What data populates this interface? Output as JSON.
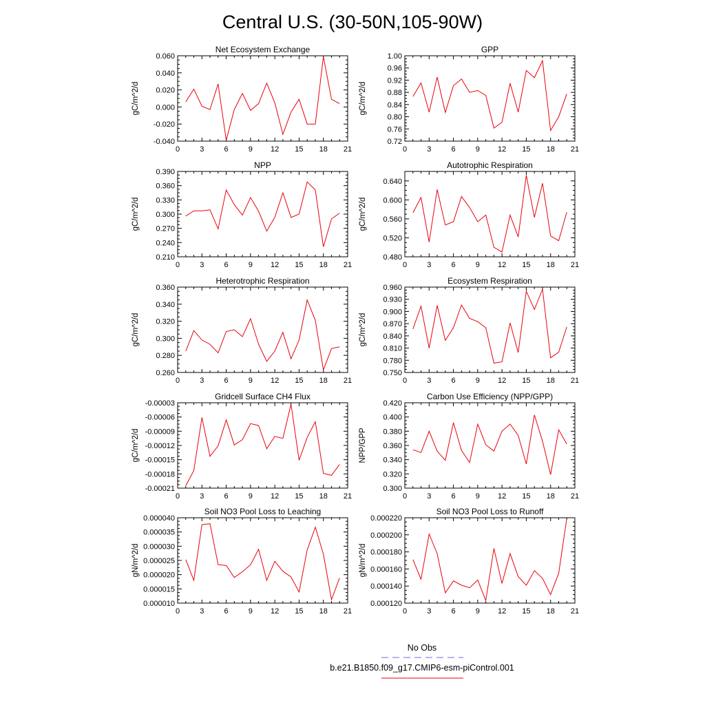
{
  "figure": {
    "title": "Central U.S. (30-50N,105-90W)",
    "series_color": "#e8000b",
    "legend": [
      {
        "name": "No Obs",
        "color": "#6a6ae6",
        "dash": "dashed"
      },
      {
        "name": "b.e21.B1850.f09_g17.CMIP6-esm-piControl.001",
        "color": "#e8000b",
        "dash": "solid"
      }
    ]
  },
  "chart_data": [
    {
      "type": "line",
      "title": "Net Ecosystem Exchange",
      "ylabel": "gC/m^2/d",
      "xlim": [
        0,
        21
      ],
      "xticks": [
        0,
        3,
        6,
        9,
        12,
        15,
        18,
        21
      ],
      "xtick_labels": [
        "0",
        "3",
        "6",
        "9",
        "12",
        "15",
        "18",
        "21"
      ],
      "ylim": [
        -0.04,
        0.06
      ],
      "yticks": [
        -0.04,
        -0.02,
        0,
        0.02,
        0.04,
        0.06
      ],
      "ytick_labels": [
        "-0.040",
        "-0.020",
        "0.000",
        "0.020",
        "0.040",
        "0.060"
      ],
      "x": [
        1,
        2,
        3,
        4,
        5,
        6,
        7,
        8,
        9,
        10,
        11,
        12,
        13,
        14,
        15,
        16,
        17,
        18,
        19,
        20
      ],
      "y": [
        0.006,
        0.021,
        0.001,
        -0.003,
        0.027,
        -0.039,
        -0.003,
        0.016,
        -0.004,
        0.004,
        0.028,
        0.005,
        -0.032,
        -0.006,
        0.009,
        -0.02,
        -0.02,
        0.059,
        0.009,
        0.004
      ]
    },
    {
      "type": "line",
      "title": "GPP",
      "ylabel": "gC/m^2/d",
      "xlim": [
        0,
        21
      ],
      "xticks": [
        0,
        3,
        6,
        9,
        12,
        15,
        18,
        21
      ],
      "xtick_labels": [
        "0",
        "3",
        "6",
        "9",
        "12",
        "15",
        "18",
        "21"
      ],
      "ylim": [
        0.72,
        1.0
      ],
      "yticks": [
        0.72,
        0.76,
        0.8,
        0.84,
        0.88,
        0.92,
        0.96,
        1.0
      ],
      "ytick_labels": [
        "0.72",
        "0.76",
        "0.80",
        "0.84",
        "0.88",
        "0.92",
        "0.96",
        "1.00"
      ],
      "x": [
        1,
        2,
        3,
        4,
        5,
        6,
        7,
        8,
        9,
        10,
        11,
        12,
        13,
        14,
        15,
        16,
        17,
        18,
        19,
        20
      ],
      "y": [
        0.866,
        0.911,
        0.815,
        0.93,
        0.814,
        0.902,
        0.924,
        0.88,
        0.886,
        0.87,
        0.763,
        0.782,
        0.91,
        0.815,
        0.952,
        0.928,
        0.984,
        0.755,
        0.8,
        0.875
      ]
    },
    {
      "type": "line",
      "title": "NPP",
      "ylabel": "gC/m^2/d",
      "xlim": [
        0,
        21
      ],
      "xticks": [
        0,
        3,
        6,
        9,
        12,
        15,
        18,
        21
      ],
      "xtick_labels": [
        "0",
        "3",
        "6",
        "9",
        "12",
        "15",
        "18",
        "21"
      ],
      "ylim": [
        0.21,
        0.39
      ],
      "yticks": [
        0.21,
        0.24,
        0.27,
        0.3,
        0.33,
        0.36,
        0.39
      ],
      "ytick_labels": [
        "0.210",
        "0.240",
        "0.270",
        "0.300",
        "0.330",
        "0.360",
        "0.390"
      ],
      "x": [
        1,
        2,
        3,
        4,
        5,
        6,
        7,
        8,
        9,
        10,
        11,
        12,
        13,
        14,
        15,
        16,
        17,
        18,
        19,
        20
      ],
      "y": [
        0.296,
        0.307,
        0.307,
        0.309,
        0.269,
        0.351,
        0.32,
        0.298,
        0.335,
        0.306,
        0.264,
        0.293,
        0.345,
        0.293,
        0.3,
        0.368,
        0.351,
        0.231,
        0.29,
        0.302
      ]
    },
    {
      "type": "line",
      "title": "Autotrophic Respiration",
      "ylabel": "gC/m^2/d",
      "xlim": [
        0,
        21
      ],
      "xticks": [
        0,
        3,
        6,
        9,
        12,
        15,
        18,
        21
      ],
      "xtick_labels": [
        "0",
        "3",
        "6",
        "9",
        "12",
        "15",
        "18",
        "21"
      ],
      "ylim": [
        0.48,
        0.66
      ],
      "yticks": [
        0.48,
        0.52,
        0.56,
        0.6,
        0.64
      ],
      "ytick_labels": [
        "0.480",
        "0.520",
        "0.560",
        "0.600",
        "0.640"
      ],
      "x": [
        1,
        2,
        3,
        4,
        5,
        6,
        7,
        8,
        9,
        10,
        11,
        12,
        13,
        14,
        15,
        16,
        17,
        18,
        19,
        20
      ],
      "y": [
        0.573,
        0.605,
        0.511,
        0.622,
        0.547,
        0.554,
        0.607,
        0.584,
        0.554,
        0.568,
        0.5,
        0.49,
        0.568,
        0.522,
        0.652,
        0.563,
        0.635,
        0.524,
        0.514,
        0.574
      ]
    },
    {
      "type": "line",
      "title": "Heterotrophic Respiration",
      "ylabel": "gC/m^2/d",
      "xlim": [
        0,
        21
      ],
      "xticks": [
        0,
        3,
        6,
        9,
        12,
        15,
        18,
        21
      ],
      "xtick_labels": [
        "0",
        "3",
        "6",
        "9",
        "12",
        "15",
        "18",
        "21"
      ],
      "ylim": [
        0.26,
        0.36
      ],
      "yticks": [
        0.26,
        0.28,
        0.3,
        0.32,
        0.34,
        0.36
      ],
      "ytick_labels": [
        "0.260",
        "0.280",
        "0.300",
        "0.320",
        "0.340",
        "0.360"
      ],
      "x": [
        1,
        2,
        3,
        4,
        5,
        6,
        7,
        8,
        9,
        10,
        11,
        12,
        13,
        14,
        15,
        16,
        17,
        18,
        19,
        20
      ],
      "y": [
        0.285,
        0.309,
        0.298,
        0.293,
        0.283,
        0.308,
        0.31,
        0.302,
        0.323,
        0.293,
        0.273,
        0.285,
        0.307,
        0.276,
        0.298,
        0.345,
        0.321,
        0.263,
        0.288,
        0.29
      ]
    },
    {
      "type": "line",
      "title": "Ecosystem Respiration",
      "ylabel": "gC/m^2/d",
      "xlim": [
        0,
        21
      ],
      "xticks": [
        0,
        3,
        6,
        9,
        12,
        15,
        18,
        21
      ],
      "xtick_labels": [
        "0",
        "3",
        "6",
        "9",
        "12",
        "15",
        "18",
        "21"
      ],
      "ylim": [
        0.75,
        0.96
      ],
      "yticks": [
        0.75,
        0.78,
        0.81,
        0.84,
        0.87,
        0.9,
        0.93,
        0.96
      ],
      "ytick_labels": [
        "0.750",
        "0.780",
        "0.810",
        "0.840",
        "0.870",
        "0.900",
        "0.930",
        "0.960"
      ],
      "x": [
        1,
        2,
        3,
        4,
        5,
        6,
        7,
        8,
        9,
        10,
        11,
        12,
        13,
        14,
        15,
        16,
        17,
        18,
        19,
        20
      ],
      "y": [
        0.857,
        0.913,
        0.81,
        0.915,
        0.829,
        0.86,
        0.916,
        0.883,
        0.875,
        0.86,
        0.773,
        0.776,
        0.872,
        0.799,
        0.95,
        0.905,
        0.955,
        0.786,
        0.8,
        0.862
      ]
    },
    {
      "type": "line",
      "title": "Gridcell Surface CH4 Flux",
      "ylabel": "gC/m^2/d",
      "xlim": [
        0,
        21
      ],
      "xticks": [
        0,
        3,
        6,
        9,
        12,
        15,
        18,
        21
      ],
      "xtick_labels": [
        "0",
        "3",
        "6",
        "9",
        "12",
        "15",
        "18",
        "21"
      ],
      "ylim": [
        -0.00021,
        -3e-05
      ],
      "yticks": [
        -0.00021,
        -0.00018,
        -0.00015,
        -0.00012,
        -9e-05,
        -6e-05,
        -3e-05
      ],
      "ytick_labels": [
        "-0.00021",
        "-0.00018",
        "-0.00015",
        "-0.00012",
        "-0.00009",
        "-0.00006",
        "-0.00003"
      ],
      "x": [
        1,
        2,
        3,
        4,
        5,
        6,
        7,
        8,
        9,
        10,
        11,
        12,
        13,
        14,
        15,
        16,
        17,
        18,
        19,
        20
      ],
      "y": [
        -0.000205,
        -0.000173,
        -6.1e-05,
        -0.000143,
        -0.000121,
        -6.6e-05,
        -0.000119,
        -0.000108,
        -7.4e-05,
        -7.8e-05,
        -0.000127,
        -0.000101,
        -0.000105,
        -3.3e-05,
        -0.000151,
        -0.000103,
        -7e-05,
        -0.000179,
        -0.000183,
        -0.00016
      ]
    },
    {
      "type": "line",
      "title": "Carbon Use Efficiency (NPP/GPP)",
      "ylabel": "NPP/GPP",
      "xlim": [
        0,
        21
      ],
      "xticks": [
        0,
        3,
        6,
        9,
        12,
        15,
        18,
        21
      ],
      "xtick_labels": [
        "0",
        "3",
        "6",
        "9",
        "12",
        "15",
        "18",
        "21"
      ],
      "ylim": [
        0.3,
        0.42
      ],
      "yticks": [
        0.3,
        0.32,
        0.34,
        0.36,
        0.38,
        0.4,
        0.42
      ],
      "ytick_labels": [
        "0.300",
        "0.320",
        "0.340",
        "0.360",
        "0.380",
        "0.400",
        "0.420"
      ],
      "x": [
        1,
        2,
        3,
        4,
        5,
        6,
        7,
        8,
        9,
        10,
        11,
        12,
        13,
        14,
        15,
        16,
        17,
        18,
        19,
        20
      ],
      "y": [
        0.354,
        0.35,
        0.38,
        0.352,
        0.339,
        0.392,
        0.353,
        0.336,
        0.39,
        0.361,
        0.352,
        0.38,
        0.39,
        0.374,
        0.334,
        0.403,
        0.366,
        0.319,
        0.382,
        0.362
      ]
    },
    {
      "type": "line",
      "title": "Soil NO3 Pool Loss to Leaching",
      "ylabel": "gN/m^2/d",
      "xlim": [
        0,
        21
      ],
      "xticks": [
        0,
        3,
        6,
        9,
        12,
        15,
        18,
        21
      ],
      "xtick_labels": [
        "0",
        "3",
        "6",
        "9",
        "12",
        "15",
        "18",
        "21"
      ],
      "ylim": [
        1e-05,
        4e-05
      ],
      "yticks": [
        1e-05,
        1.5e-05,
        2e-05,
        2.5e-05,
        3e-05,
        3.5e-05,
        4e-05
      ],
      "ytick_labels": [
        "0.000010",
        "0.000015",
        "0.000020",
        "0.000025",
        "0.000030",
        "0.000035",
        "0.000040"
      ],
      "x": [
        1,
        2,
        3,
        4,
        5,
        6,
        7,
        8,
        9,
        10,
        11,
        12,
        13,
        14,
        15,
        16,
        17,
        18,
        19,
        20
      ],
      "y": [
        2.53e-05,
        1.8e-05,
        3.76e-05,
        3.79e-05,
        2.35e-05,
        2.32e-05,
        1.9e-05,
        2.1e-05,
        2.35e-05,
        2.89e-05,
        1.8e-05,
        2.47e-05,
        2.12e-05,
        1.92e-05,
        1.39e-05,
        2.87e-05,
        3.67e-05,
        2.72e-05,
        1.12e-05,
        1.88e-05
      ]
    },
    {
      "type": "line",
      "title": "Soil NO3 Pool Loss to Runoff",
      "ylabel": "gN/m^2/d",
      "xlim": [
        0,
        21
      ],
      "xticks": [
        0,
        3,
        6,
        9,
        12,
        15,
        18,
        21
      ],
      "xtick_labels": [
        "0",
        "3",
        "6",
        "9",
        "12",
        "15",
        "18",
        "21"
      ],
      "ylim": [
        0.00012,
        0.00022
      ],
      "yticks": [
        0.00012,
        0.00014,
        0.00016,
        0.00018,
        0.0002,
        0.00022
      ],
      "ytick_labels": [
        "0.000120",
        "0.000140",
        "0.000160",
        "0.000180",
        "0.000200",
        "0.000220"
      ],
      "x": [
        1,
        2,
        3,
        4,
        5,
        6,
        7,
        8,
        9,
        10,
        11,
        12,
        13,
        14,
        15,
        16,
        17,
        18,
        19,
        20
      ],
      "y": [
        0.000171,
        0.000148,
        0.000201,
        0.000178,
        0.000132,
        0.000146,
        0.000141,
        0.000138,
        0.000147,
        0.000123,
        0.000184,
        0.000143,
        0.000178,
        0.000151,
        0.000141,
        0.000158,
        0.000149,
        0.00013,
        0.000155,
        0.000219
      ]
    }
  ]
}
